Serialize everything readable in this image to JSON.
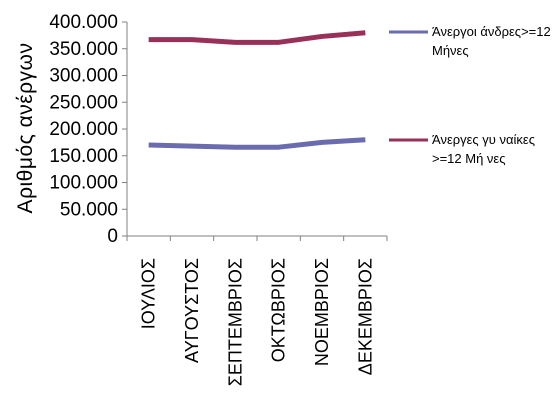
{
  "chart_data": {
    "type": "line",
    "title": "",
    "xlabel": "",
    "ylabel": "Αριθμός ανέργων",
    "categories": [
      "ΙΟΥΛΙΟΣ",
      "ΑΥΓΟΥΣΤΟΣ",
      "ΣΕΠΤΕΜΒΡΙΟΣ",
      "ΟΚΤΩΒΡΙΟΣ",
      "ΝΟΕΜΒΡΙΟΣ",
      "ΔΕΚΕΜΒΡΙΟΣ"
    ],
    "ylim": [
      0,
      400000
    ],
    "yticks": [
      0,
      50000,
      100000,
      150000,
      200000,
      250000,
      300000,
      350000,
      400000
    ],
    "ytick_labels": [
      "0",
      "50.000",
      "100.000",
      "150.000",
      "200.000",
      "250.000",
      "300.000",
      "350.000",
      "400.000"
    ],
    "grid": false,
    "legend_position": "right",
    "series": [
      {
        "name": "Άνεργοι άνδρες>=12 Μήνες",
        "legend_lines": [
          "Άνεργοι άνδρες>=12",
          "Μήνες"
        ],
        "color": "#6b6bb0",
        "values": [
          170000,
          168000,
          166000,
          166000,
          175000,
          180000
        ]
      },
      {
        "name": "Άνεργες γυναίκες >=12 Μήνες",
        "legend_lines": [
          "Άνεργες γυ ναίκες",
          ">=12 Μή νες"
        ],
        "color": "#98305a",
        "values": [
          367000,
          367000,
          362000,
          362000,
          373000,
          380000
        ]
      }
    ]
  }
}
